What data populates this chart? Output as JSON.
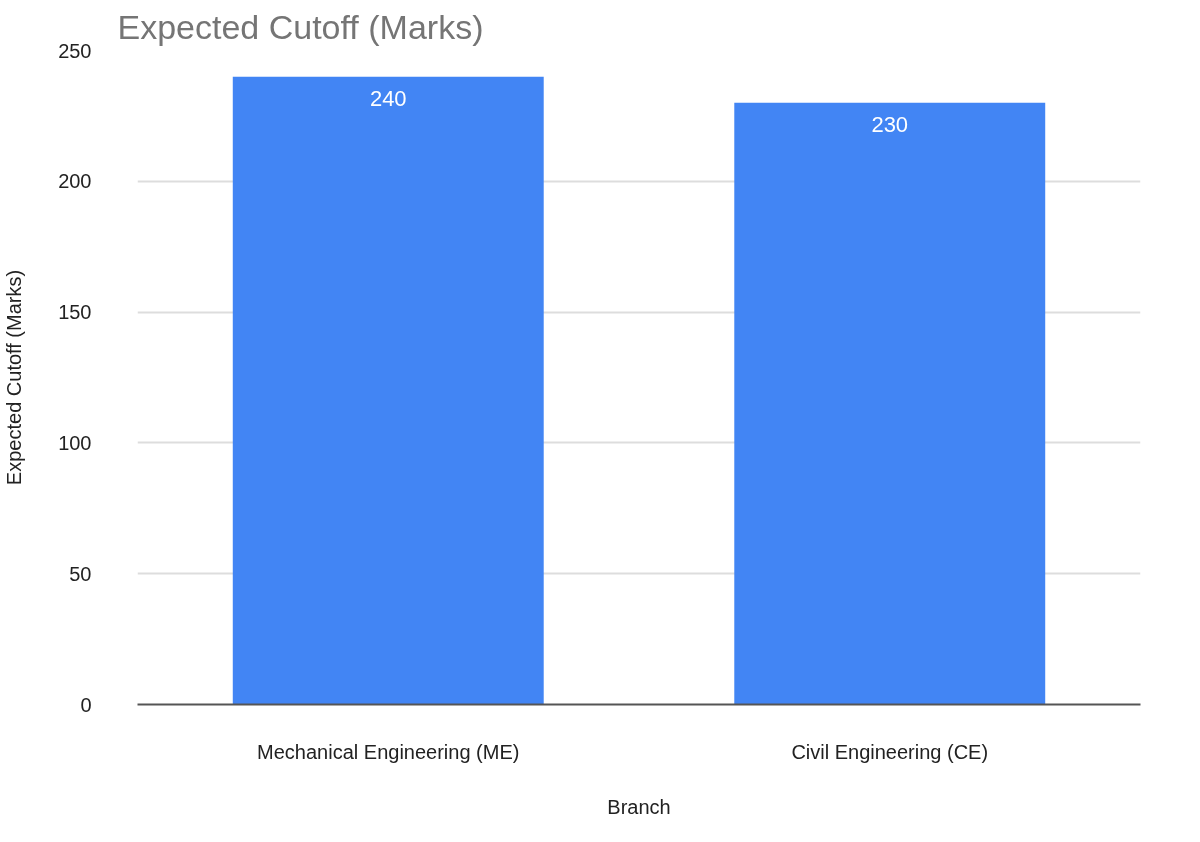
{
  "chart_data": {
    "type": "bar",
    "title": "Expected Cutoff (Marks)",
    "xlabel": "Branch",
    "ylabel": "Expected Cutoff (Marks)",
    "categories": [
      "Mechanical Engineering (ME)",
      "Civil Engineering (CE)"
    ],
    "values": [
      240,
      230
    ],
    "color": "#4285f4",
    "ylim": [
      0,
      250
    ],
    "yticks": [
      0,
      50,
      100,
      150,
      200,
      250
    ],
    "grid": "y",
    "data_labels": true
  }
}
